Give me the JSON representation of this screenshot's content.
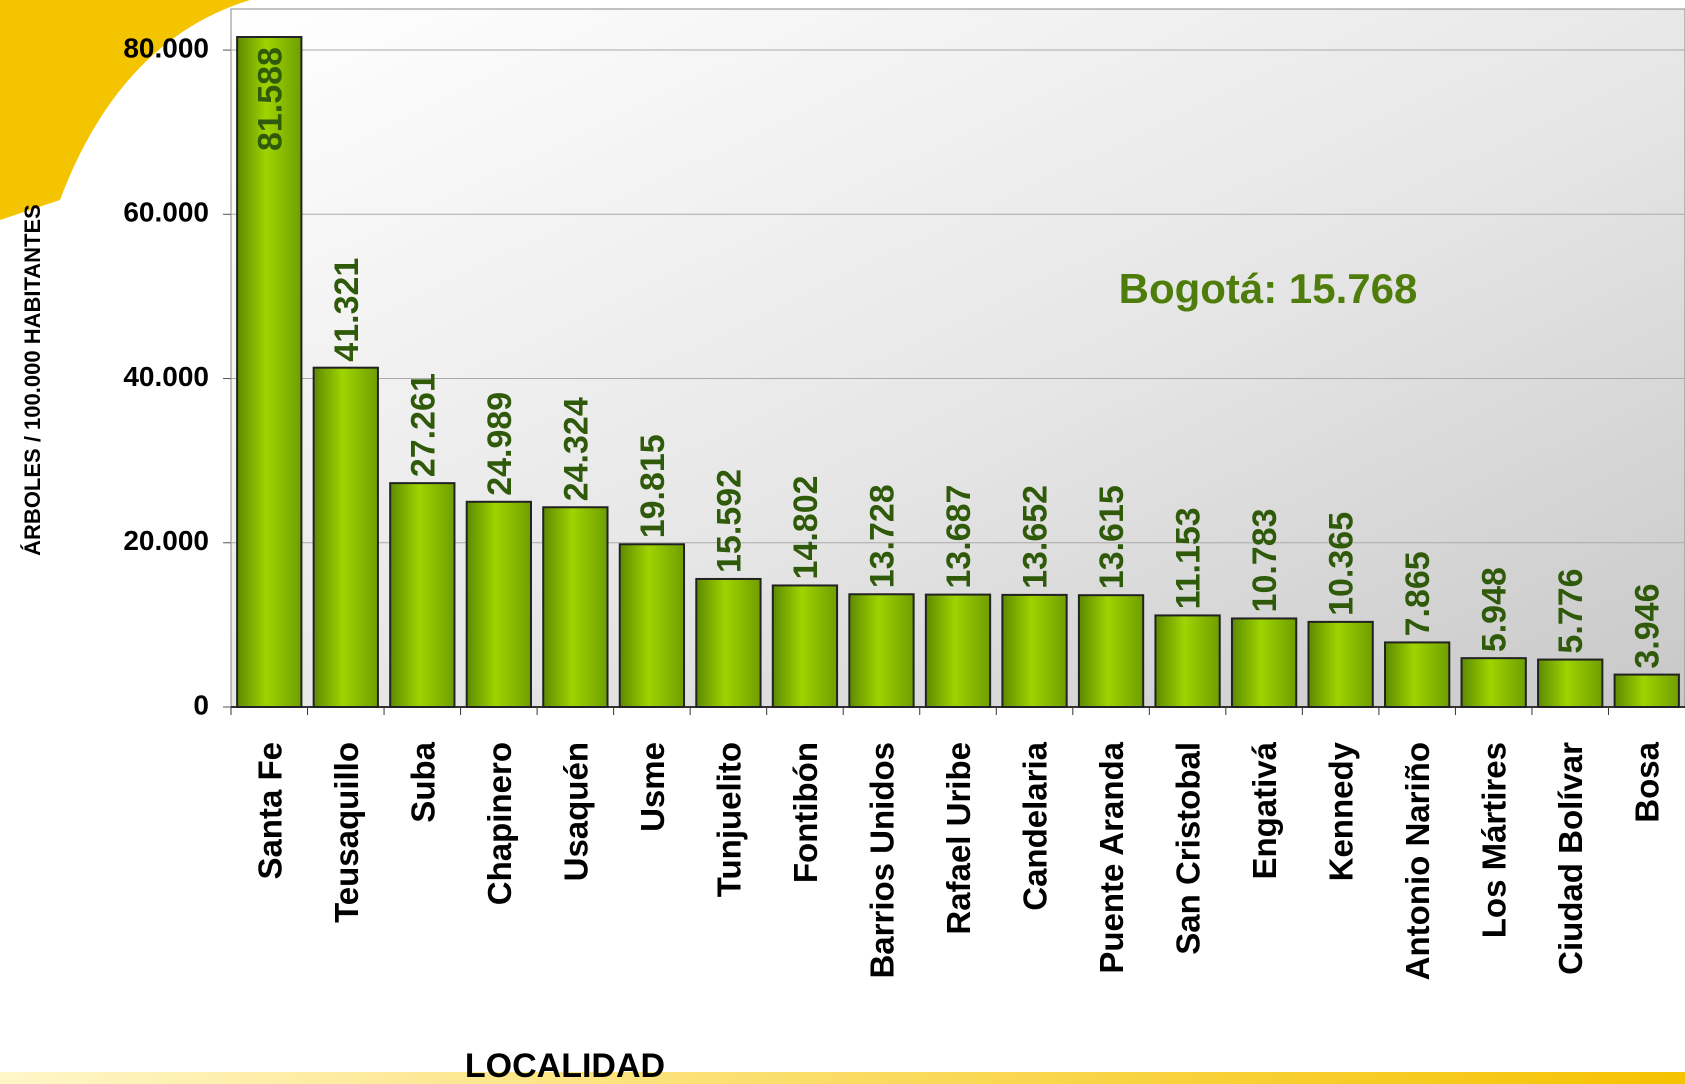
{
  "chart_data": {
    "type": "bar",
    "y_label": "ÁRBOLES / 100.000 HABITANTES",
    "x_label": "LOCALIDAD",
    "annotation": "Bogotá: 15.768",
    "categories": [
      "Santa Fe",
      "Teusaquillo",
      "Suba",
      "Chapinero",
      "Usaquén",
      "Usme",
      "Tunjuelito",
      "Fontibón",
      "Barrios Unidos",
      "Rafael Uribe",
      "Candelaria",
      "Puente Aranda",
      "San Cristobal",
      "Engativá",
      "Kennedy",
      "Antonio Nariño",
      "Los Mártires",
      "Ciudad Bolívar",
      "Bosa"
    ],
    "values": [
      81588,
      41321,
      27261,
      24989,
      24324,
      19815,
      15592,
      14802,
      13728,
      13687,
      13652,
      13615,
      11153,
      10783,
      10365,
      7865,
      5948,
      5776,
      3946
    ],
    "value_labels": [
      "81.588",
      "41.321",
      "27.261",
      "24.989",
      "24.324",
      "19.815",
      "15.592",
      "14.802",
      "13.728",
      "13.687",
      "13.652",
      "13.615",
      "11.153",
      "10.783",
      "10.365",
      "7.865",
      "5.948",
      "5.776",
      "3.946"
    ],
    "color": "#8cc400",
    "ylim": [
      0,
      85000
    ],
    "yticks": [
      0,
      {
        "value": 20000,
        "label": "20.000"
      },
      {
        "value": 40000,
        "label": "40.000"
      },
      {
        "value": 60000,
        "label": "60.000"
      },
      {
        "value": 80000,
        "label": "80.000"
      }
    ],
    "grid": true
  }
}
